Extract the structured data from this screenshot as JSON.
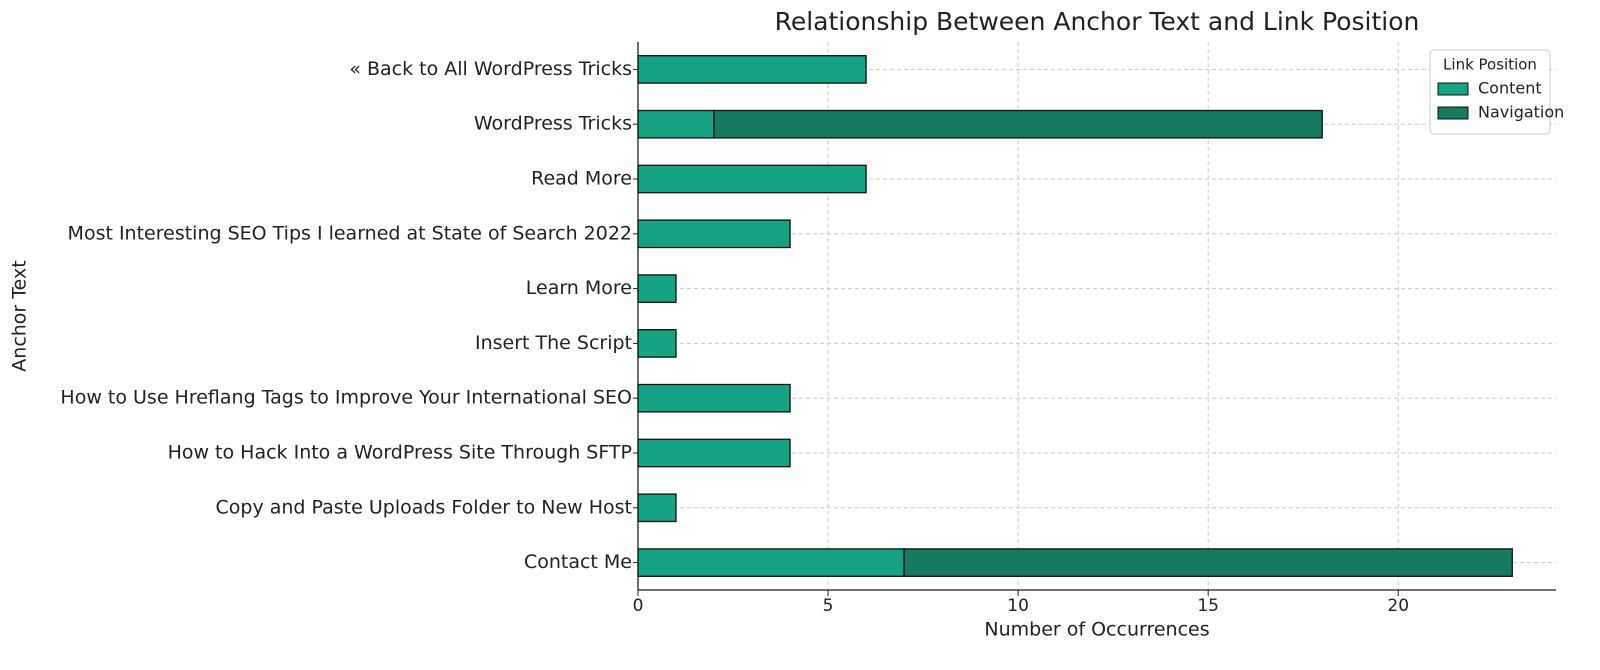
{
  "chart_data": {
    "type": "stacked_barh",
    "title": "Relationship Between Anchor Text and Link Position",
    "x_label": "Number of Occurrences",
    "y_label": "Anchor Text",
    "categories": [
      "Contact Me",
      "Copy and Paste Uploads Folder to New Host",
      "How to Hack Into a WordPress Site Through SFTP",
      "How to Use Hreflang Tags to Improve Your International SEO",
      "Insert The Script",
      "Learn More",
      "Most Interesting SEO Tips I learned at State of Search 2022",
      "Read More",
      "WordPress Tricks",
      "« Back to All WordPress Tricks"
    ],
    "series": [
      {
        "name": "Content",
        "color": "#16a383",
        "values": [
          7,
          1,
          4,
          4,
          1,
          1,
          4,
          6,
          2,
          6
        ]
      },
      {
        "name": "Navigation",
        "color": "#167a60",
        "values": [
          16,
          0,
          0,
          0,
          0,
          0,
          0,
          0,
          16,
          0
        ]
      }
    ],
    "legend_title": "Link Position",
    "legend": "upper right",
    "xlim": [
      0,
      24.15
    ],
    "xticks": [
      0,
      5,
      10,
      15,
      20
    ],
    "grid": true
  }
}
